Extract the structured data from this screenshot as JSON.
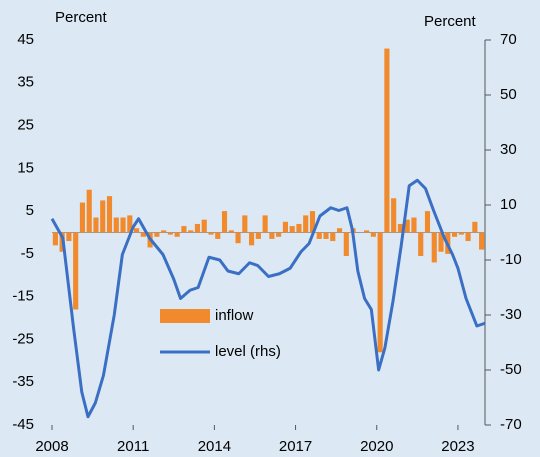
{
  "chart_data": {
    "type": "bar",
    "ylabel": "Percent",
    "y2label": "Percent",
    "xlim": [
      2008,
      2024
    ],
    "xticks": [
      2008,
      2011,
      2014,
      2017,
      2020,
      2023
    ],
    "ylim": [
      -45,
      45
    ],
    "yticks": [
      45,
      35,
      25,
      15,
      5,
      -5,
      -15,
      -25,
      -35,
      -45
    ],
    "y2lim": [
      -70,
      70
    ],
    "y2ticks": [
      70,
      50,
      30,
      10,
      -10,
      -30,
      -50,
      -70
    ],
    "series": [
      {
        "name": "inflow",
        "type": "bar",
        "color": "#f08a2c",
        "x": [
          2008,
          2008.25,
          2008.5,
          2008.75,
          2009,
          2009.25,
          2009.5,
          2009.75,
          2010,
          2010.25,
          2010.5,
          2010.75,
          2011,
          2011.25,
          2011.5,
          2011.75,
          2012,
          2012.25,
          2012.5,
          2012.75,
          2013,
          2013.25,
          2013.5,
          2013.75,
          2014,
          2014.25,
          2014.5,
          2014.75,
          2015,
          2015.25,
          2015.5,
          2015.75,
          2016,
          2016.25,
          2016.5,
          2016.75,
          2017,
          2017.25,
          2017.5,
          2017.75,
          2018,
          2018.25,
          2018.5,
          2018.75,
          2019,
          2019.25,
          2019.5,
          2019.75,
          2020,
          2020.25,
          2020.5,
          2020.75,
          2021,
          2021.25,
          2021.5,
          2021.75,
          2022,
          2022.25,
          2022.5,
          2022.75,
          2023,
          2023.25,
          2023.5,
          2023.75
        ],
        "values": [
          -3,
          -4.5,
          -2,
          -18,
          7,
          10,
          3.5,
          7.5,
          8.5,
          3.5,
          3.5,
          4,
          1,
          -1,
          -3.5,
          -1,
          0.5,
          -0.5,
          -1,
          1.5,
          0.5,
          2,
          3,
          -0.5,
          -1.5,
          5,
          0.5,
          -2.5,
          4,
          -3,
          -1.5,
          4,
          -1.5,
          -1,
          2.5,
          1.5,
          2,
          4,
          5,
          -1.5,
          -1.5,
          -2,
          1,
          -5.5,
          1,
          0,
          0.5,
          -1,
          -28,
          43,
          8,
          2,
          3,
          3.5,
          -5.5,
          5,
          -7,
          -4.5,
          -5,
          -1,
          -0.5,
          -2,
          2.5,
          -4
        ]
      },
      {
        "name": "level (rhs)",
        "type": "line",
        "axis": "y2",
        "color": "#3a6fc4",
        "x": [
          2008,
          2008.4,
          2008.8,
          2009.1,
          2009.33,
          2009.6,
          2009.9,
          2010.3,
          2010.6,
          2011,
          2011.2,
          2011.6,
          2012.1,
          2012.5,
          2012.75,
          2013.1,
          2013.4,
          2013.8,
          2014.2,
          2014.5,
          2014.9,
          2015.3,
          2015.6,
          2016,
          2016.4,
          2016.8,
          2017.2,
          2017.5,
          2017.9,
          2018.3,
          2018.6,
          2018.9,
          2019.1,
          2019.3,
          2019.55,
          2019.8,
          2020.07,
          2020.3,
          2020.6,
          2020.9,
          2021.2,
          2021.5,
          2021.8,
          2022.1,
          2022.5,
          2022.8,
          2023,
          2023.3,
          2023.5,
          2023.7,
          2024
        ],
        "values": [
          5,
          -2,
          -35,
          -58,
          -67,
          -62,
          -52,
          -30,
          -8,
          2,
          5,
          -2,
          -8,
          -17,
          -24,
          -21,
          -20,
          -9,
          -10,
          -14,
          -15,
          -11,
          -12,
          -16,
          -15,
          -13,
          -7,
          -4,
          6,
          9,
          8,
          9,
          1,
          -14,
          -24,
          -28,
          -50,
          -42,
          -25,
          -5,
          17,
          19,
          16,
          8,
          -2,
          -8,
          -13,
          -24,
          -29,
          -34,
          -33
        ]
      }
    ]
  }
}
